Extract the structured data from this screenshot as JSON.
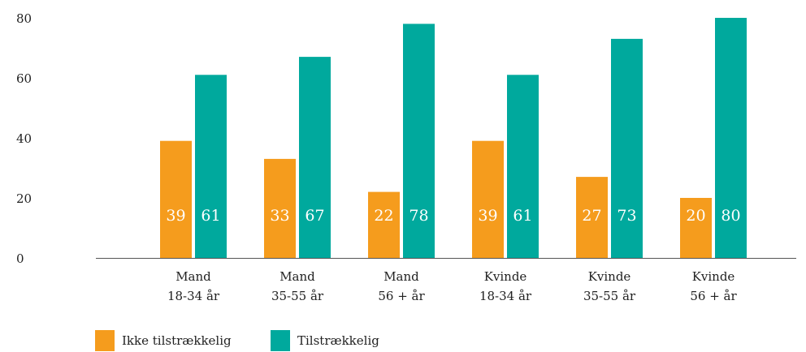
{
  "chart_data": {
    "type": "bar",
    "categories": [
      [
        "Mand",
        "18-34 år"
      ],
      [
        "Mand",
        "35-55 år"
      ],
      [
        "Mand",
        "56 + år"
      ],
      [
        "Kvinde",
        "18-34 år"
      ],
      [
        "Kvinde",
        "35-55 år"
      ],
      [
        "Kvinde",
        "56 + år"
      ]
    ],
    "series": [
      {
        "name": "Ikke tilstrækkelig",
        "color": "#f59c1d",
        "values": [
          39,
          33,
          22,
          39,
          27,
          20
        ]
      },
      {
        "name": "Tilstrækkelig",
        "color": "#00a99d",
        "values": [
          61,
          67,
          78,
          61,
          73,
          80
        ]
      }
    ],
    "ylim": [
      0,
      80
    ],
    "yticks": [
      0,
      20,
      40,
      60,
      80
    ],
    "grid": false,
    "legend": "bottom"
  }
}
